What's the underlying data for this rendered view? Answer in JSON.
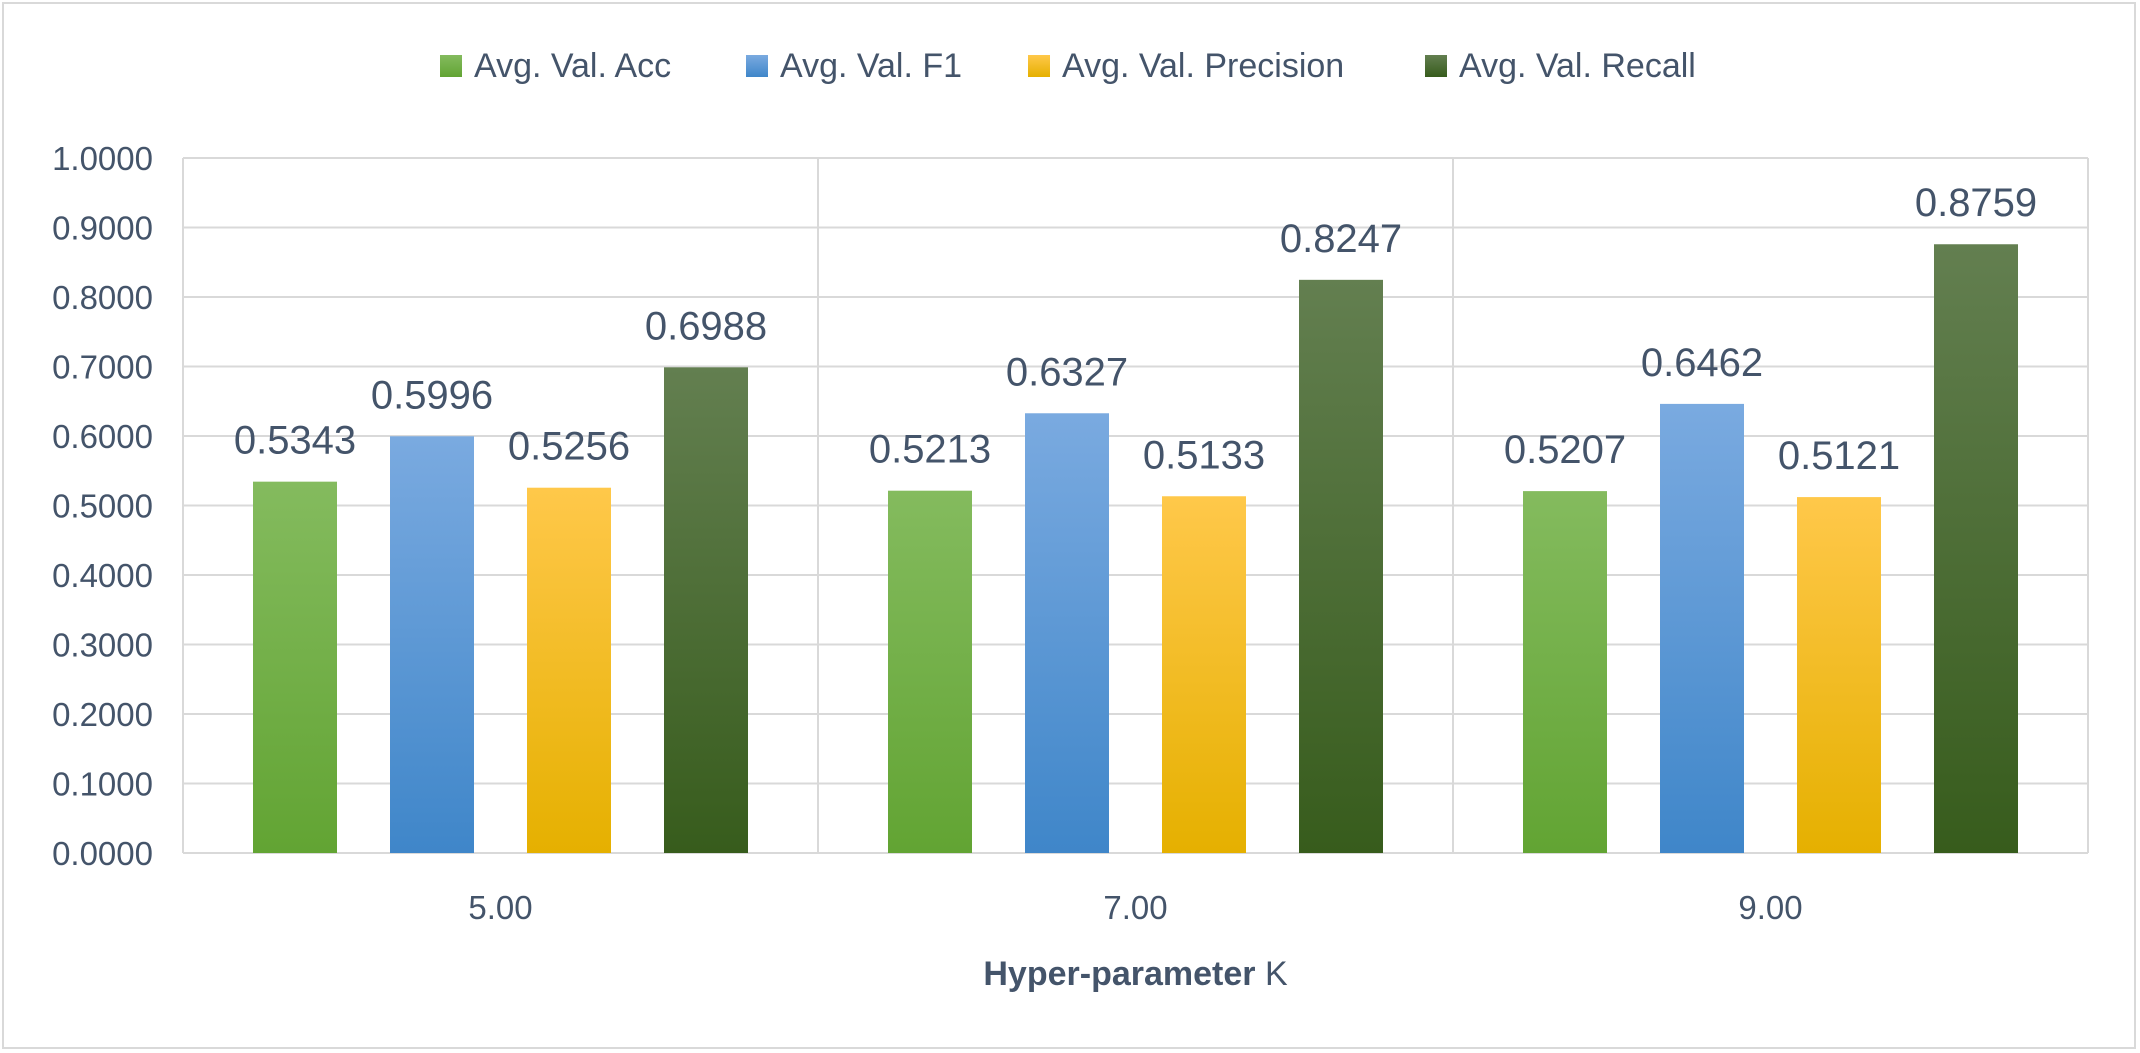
{
  "chart_data": {
    "type": "bar",
    "title": "",
    "xlabel_bold": "Hyper-parameter",
    "xlabel_rest": " K",
    "ylabel": "",
    "categories": [
      "5.00",
      "7.00",
      "9.00"
    ],
    "series": [
      {
        "name": "Avg. Val. Acc",
        "values": [
          0.5343,
          0.5213,
          0.5207
        ],
        "color_top": "#84bb5e",
        "color_bottom": "#62a433"
      },
      {
        "name": "Avg. Val. F1",
        "values": [
          0.5996,
          0.6327,
          0.6462
        ],
        "color_top": "#7aaae0",
        "color_bottom": "#3f86c9"
      },
      {
        "name": "Avg. Val. Precision",
        "values": [
          0.5256,
          0.5133,
          0.5121
        ],
        "color_top": "#ffc84a",
        "color_bottom": "#e5b000"
      },
      {
        "name": "Avg. Val. Recall",
        "values": [
          0.6988,
          0.8247,
          0.8759
        ],
        "color_top": "#637f50",
        "color_bottom": "#375c1c"
      }
    ],
    "data_labels": [
      [
        "0.5343",
        "0.5213",
        "0.5207"
      ],
      [
        "0.5996",
        "0.6327",
        "0.6462"
      ],
      [
        "0.5256",
        "0.5133",
        "0.5121"
      ],
      [
        "0.6988",
        "0.8247",
        "0.8759"
      ]
    ],
    "ylim": [
      0,
      1
    ],
    "yticks": [
      0,
      0.1,
      0.2,
      0.3,
      0.4,
      0.5,
      0.6,
      0.7,
      0.8,
      0.9,
      1.0
    ],
    "ytick_labels": [
      "0.0000",
      "0.1000",
      "0.2000",
      "0.3000",
      "0.4000",
      "0.5000",
      "0.6000",
      "0.7000",
      "0.8000",
      "0.9000",
      "1.0000"
    ],
    "grid": true,
    "legend_position": "top-center",
    "colors": {
      "text": "#44546a",
      "grid": "#d9d9d9"
    }
  }
}
